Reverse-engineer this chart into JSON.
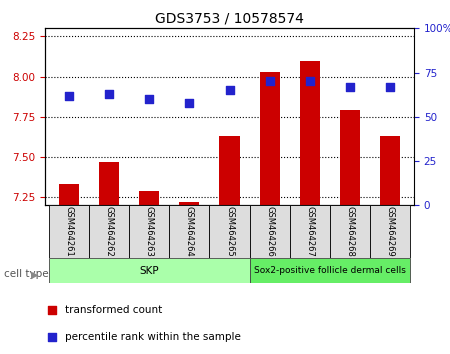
{
  "title": "GDS3753 / 10578574",
  "samples": [
    "GSM464261",
    "GSM464262",
    "GSM464263",
    "GSM464264",
    "GSM464265",
    "GSM464266",
    "GSM464267",
    "GSM464268",
    "GSM464269"
  ],
  "transformed_counts": [
    7.33,
    7.47,
    7.29,
    7.22,
    7.63,
    8.03,
    8.1,
    7.79,
    7.63
  ],
  "percentile_ranks": [
    62,
    63,
    60,
    58,
    65,
    70,
    70,
    67,
    67
  ],
  "ylim_left": [
    7.2,
    8.3
  ],
  "ylim_right": [
    0,
    100
  ],
  "left_ticks": [
    7.25,
    7.5,
    7.75,
    8.0,
    8.25
  ],
  "right_ticks": [
    0,
    25,
    50,
    75,
    100
  ],
  "bar_color": "#CC0000",
  "dot_color": "#2222CC",
  "bar_width": 0.5,
  "dot_size": 35,
  "grid_color": "black",
  "left_tick_color": "#CC0000",
  "right_tick_color": "#2222CC",
  "skp_color": "#aaffaa",
  "sox2_color": "#66ee66",
  "legend_items": [
    {
      "label": "transformed count",
      "color": "#CC0000"
    },
    {
      "label": "percentile rank within the sample",
      "color": "#2222CC"
    }
  ],
  "cell_type_label": "cell type",
  "n_skp": 5,
  "figsize": [
    4.5,
    3.54
  ],
  "dpi": 100
}
